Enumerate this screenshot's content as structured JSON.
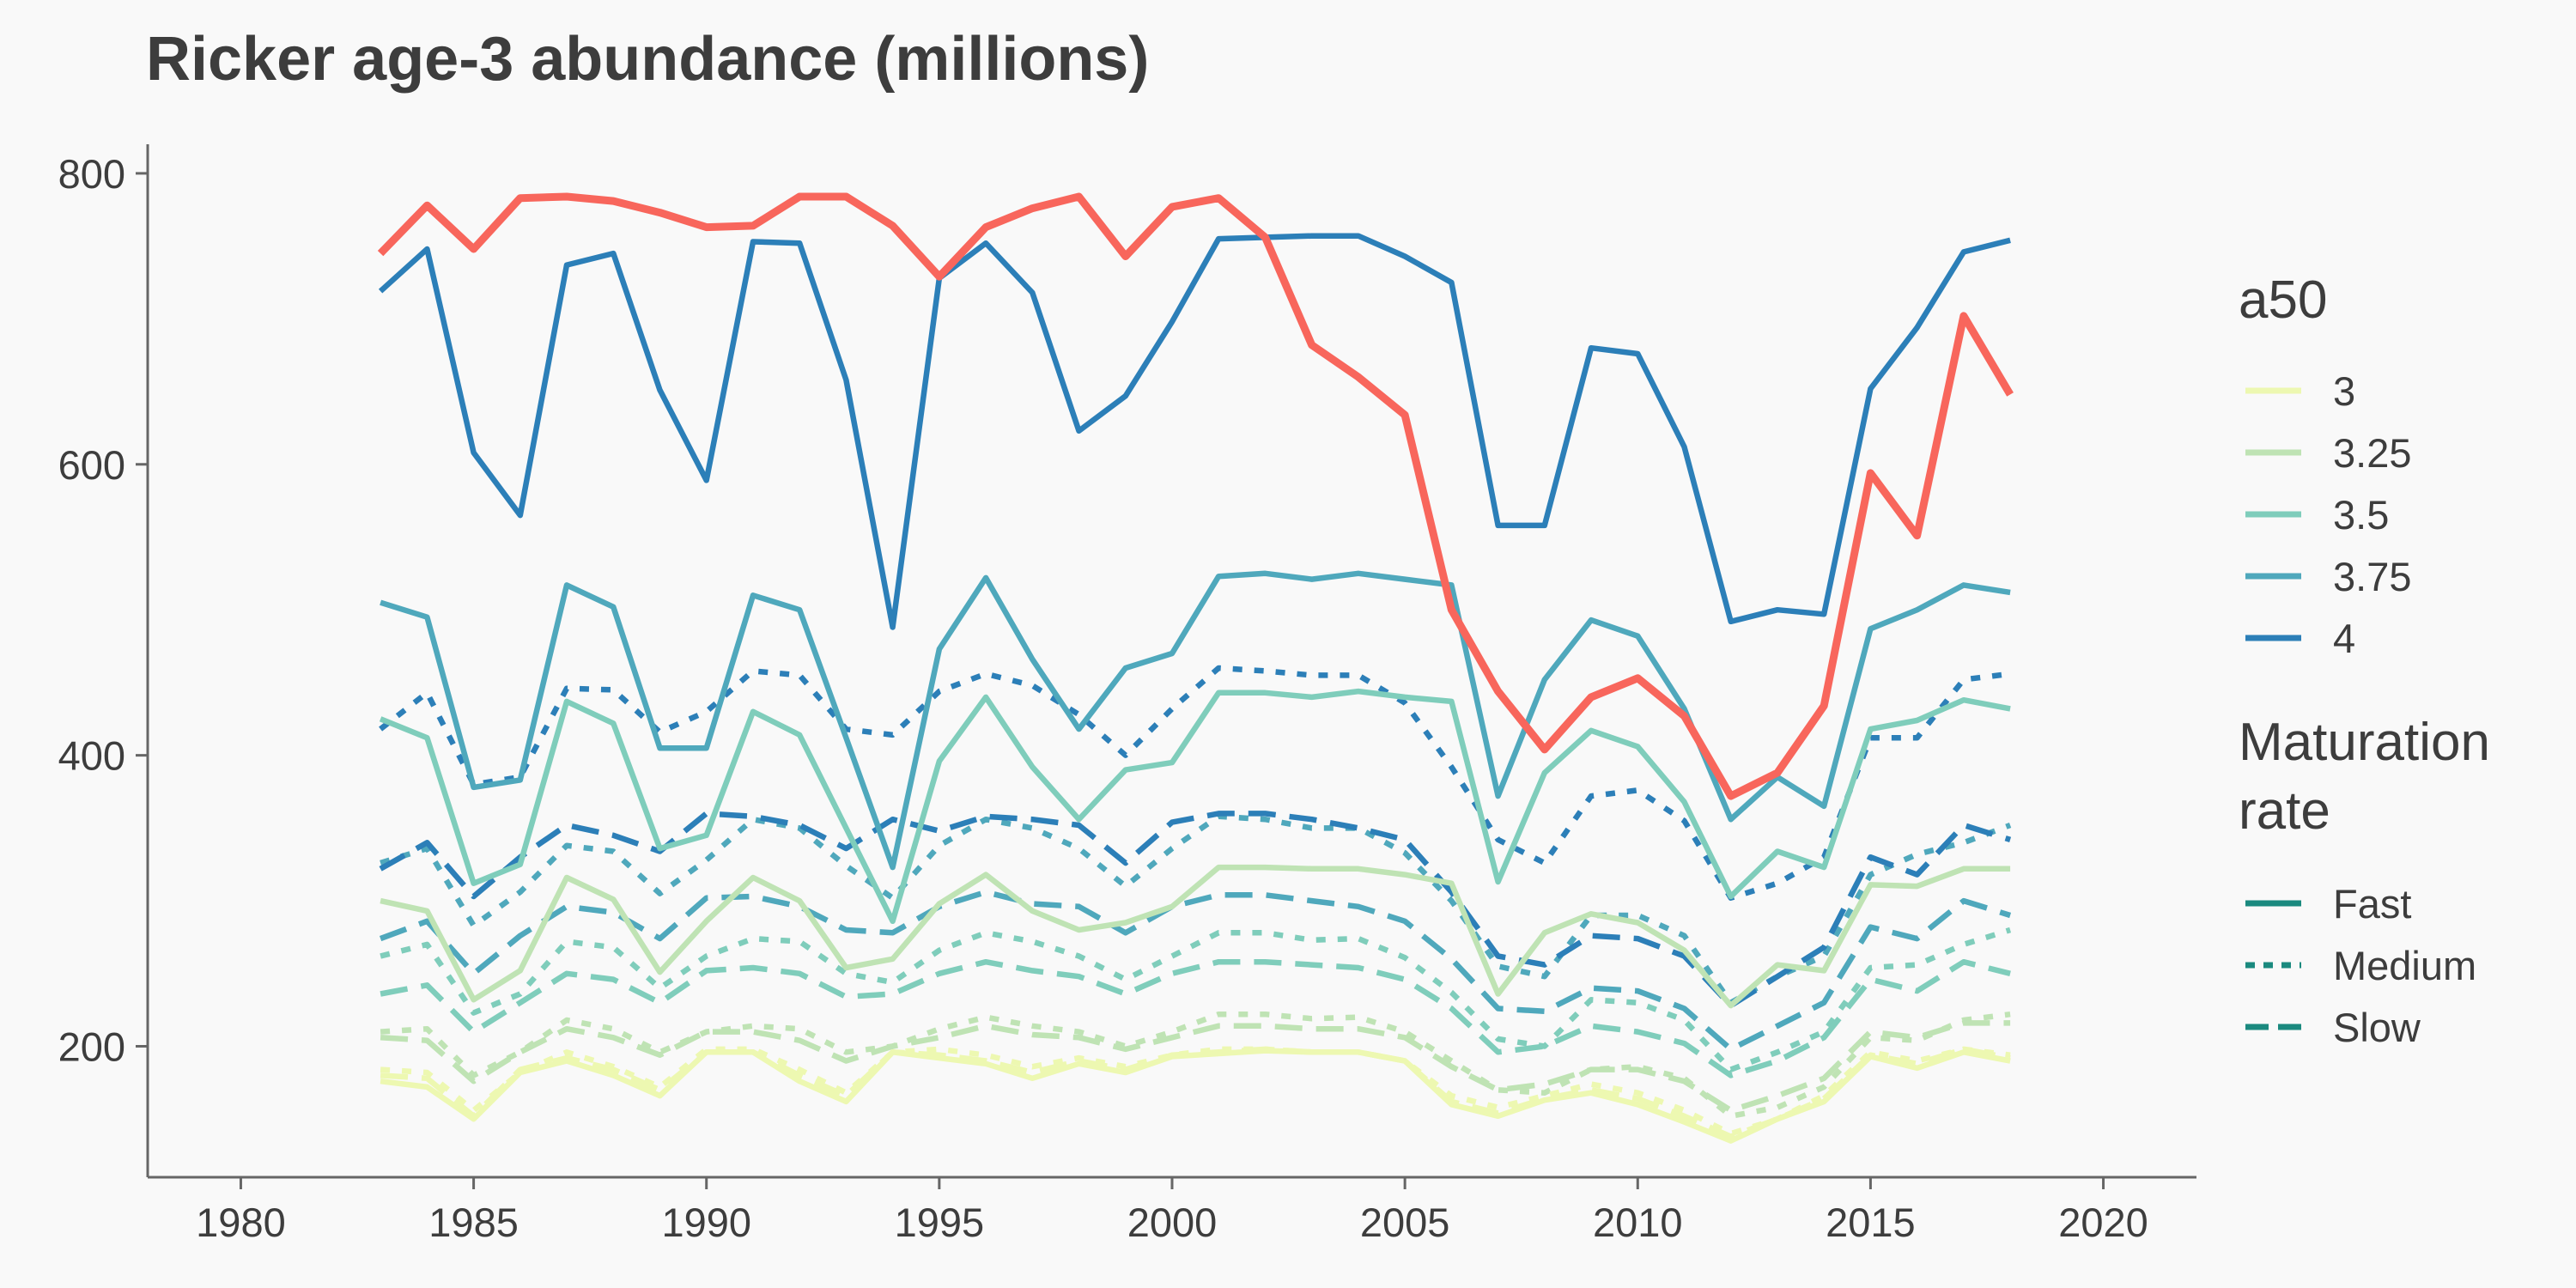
{
  "chart_data": {
    "type": "line",
    "title": "Ricker age-3 abundance (millions)",
    "xlabel": "",
    "ylabel": "",
    "xlim": [
      1978,
      2022
    ],
    "ylim": [
      110,
      820
    ],
    "x_ticks": [
      1980,
      1985,
      1990,
      1995,
      2000,
      2005,
      2010,
      2015,
      2020
    ],
    "y_ticks": [
      200,
      400,
      600,
      800
    ],
    "grid": false,
    "legend_position": "right",
    "x": [
      1983,
      1984,
      1985,
      1986,
      1987,
      1988,
      1989,
      1990,
      1991,
      1992,
      1993,
      1994,
      1995,
      1996,
      1997,
      1998,
      1999,
      2000,
      2001,
      2002,
      2003,
      2004,
      2005,
      2006,
      2007,
      2008,
      2009,
      2010,
      2011,
      2012,
      2013,
      2014,
      2015,
      2016,
      2017,
      2018
    ],
    "legend": {
      "a50_title": "a50",
      "a50_entries": [
        {
          "label": "3",
          "color": "#edf8b1"
        },
        {
          "label": "3.25",
          "color": "#bfe3b4"
        },
        {
          "label": "3.5",
          "color": "#7fcdbb"
        },
        {
          "label": "3.75",
          "color": "#4fa8bc"
        },
        {
          "label": "4",
          "color": "#2c7fb8"
        }
      ],
      "maturation_title_lines": [
        "Maturation",
        "rate"
      ],
      "maturation_entries": [
        {
          "label": "Fast",
          "dash": "solid"
        },
        {
          "label": "Medium",
          "dash": "dotted"
        },
        {
          "label": "Slow",
          "dash": "dashed"
        }
      ],
      "swatch_color": "#1b8a7f"
    },
    "series": [
      {
        "a50": "4",
        "rate": "Fast",
        "color": "#2c7fb8",
        "dash": "solid",
        "values": [
          719,
          748,
          608,
          565,
          737,
          745,
          651,
          589,
          753,
          752,
          658,
          488,
          728,
          752,
          718,
          623,
          647,
          698,
          755,
          756,
          757,
          757,
          743,
          725,
          558,
          558,
          680,
          676,
          612,
          492,
          500,
          497,
          652,
          694,
          746,
          754
        ]
      },
      {
        "a50": "3.75",
        "rate": "Fast",
        "color": "#4fa8bc",
        "dash": "solid",
        "values": [
          505,
          495,
          378,
          383,
          517,
          502,
          405,
          405,
          510,
          500,
          412,
          323,
          473,
          522,
          466,
          418,
          460,
          470,
          523,
          525,
          521,
          525,
          521,
          517,
          372,
          452,
          493,
          482,
          432,
          356,
          385,
          365,
          487,
          500,
          517,
          512
        ]
      },
      {
        "a50": "3.5",
        "rate": "Fast",
        "color": "#7fcdbb",
        "dash": "solid",
        "values": [
          425,
          412,
          312,
          325,
          437,
          422,
          336,
          345,
          430,
          414,
          350,
          286,
          396,
          440,
          392,
          356,
          390,
          395,
          443,
          443,
          440,
          444,
          440,
          437,
          313,
          388,
          417,
          406,
          368,
          303,
          334,
          323,
          418,
          424,
          438,
          432
        ]
      },
      {
        "a50": "3.25",
        "rate": "Fast",
        "color": "#bfe3b4",
        "dash": "solid",
        "values": [
          300,
          293,
          232,
          252,
          316,
          301,
          251,
          286,
          316,
          300,
          254,
          260,
          298,
          318,
          293,
          280,
          285,
          296,
          323,
          323,
          322,
          322,
          318,
          312,
          236,
          278,
          291,
          285,
          266,
          228,
          256,
          252,
          311,
          310,
          322,
          322
        ]
      },
      {
        "a50": "3",
        "rate": "Fast",
        "color": "#edf8b1",
        "dash": "solid",
        "values": [
          176,
          172,
          150,
          182,
          190,
          180,
          166,
          196,
          196,
          176,
          162,
          196,
          192,
          188,
          178,
          188,
          182,
          193,
          195,
          197,
          196,
          196,
          190,
          160,
          152,
          163,
          168,
          160,
          148,
          135,
          150,
          162,
          193,
          185,
          196,
          190
        ]
      },
      {
        "a50": "4",
        "rate": "Medium",
        "color": "#2c7fb8",
        "dash": "dotted",
        "values": [
          418,
          443,
          380,
          385,
          446,
          445,
          416,
          430,
          458,
          455,
          418,
          414,
          444,
          456,
          448,
          428,
          400,
          432,
          460,
          458,
          455,
          455,
          436,
          392,
          342,
          326,
          372,
          376,
          355,
          302,
          312,
          330,
          412,
          412,
          452,
          456
        ]
      },
      {
        "a50": "3.75",
        "rate": "Medium",
        "color": "#4fa8bc",
        "dash": "dotted",
        "values": [
          326,
          336,
          283,
          306,
          338,
          334,
          305,
          328,
          356,
          350,
          324,
          302,
          338,
          356,
          350,
          336,
          310,
          336,
          358,
          356,
          350,
          350,
          333,
          300,
          255,
          248,
          290,
          290,
          276,
          230,
          248,
          262,
          318,
          332,
          340,
          352
        ]
      },
      {
        "a50": "3.5",
        "rate": "Medium",
        "color": "#7fcdbb",
        "dash": "dotted",
        "values": [
          262,
          270,
          223,
          236,
          272,
          268,
          240,
          262,
          274,
          272,
          250,
          244,
          266,
          278,
          272,
          262,
          246,
          262,
          278,
          278,
          273,
          274,
          261,
          237,
          205,
          200,
          232,
          230,
          218,
          184,
          196,
          210,
          254,
          256,
          270,
          280
        ]
      },
      {
        "a50": "3.25",
        "rate": "Medium",
        "color": "#bfe3b4",
        "dash": "dotted",
        "values": [
          210,
          212,
          180,
          196,
          218,
          212,
          196,
          210,
          214,
          212,
          196,
          200,
          212,
          220,
          214,
          210,
          200,
          210,
          222,
          222,
          219,
          220,
          210,
          190,
          170,
          168,
          184,
          186,
          178,
          152,
          158,
          172,
          206,
          204,
          218,
          222
        ]
      },
      {
        "a50": "3",
        "rate": "Medium",
        "color": "#edf8b1",
        "dash": "dotted",
        "values": [
          184,
          182,
          156,
          182,
          196,
          186,
          172,
          198,
          198,
          184,
          168,
          196,
          198,
          194,
          186,
          192,
          186,
          194,
          198,
          198,
          196,
          196,
          190,
          166,
          158,
          166,
          174,
          168,
          156,
          140,
          150,
          166,
          196,
          190,
          198,
          194
        ]
      },
      {
        "a50": "4",
        "rate": "Slow",
        "color": "#2c7fb8",
        "dash": "dashed",
        "values": [
          322,
          340,
          303,
          330,
          352,
          345,
          334,
          360,
          358,
          352,
          336,
          356,
          348,
          358,
          356,
          352,
          326,
          354,
          360,
          360,
          356,
          350,
          342,
          306,
          262,
          256,
          276,
          274,
          262,
          228,
          248,
          268,
          330,
          318,
          352,
          342
        ]
      },
      {
        "a50": "3.75",
        "rate": "Slow",
        "color": "#4fa8bc",
        "dash": "dashed",
        "values": [
          274,
          286,
          250,
          276,
          296,
          292,
          274,
          302,
          303,
          296,
          280,
          278,
          296,
          306,
          298,
          296,
          278,
          296,
          304,
          304,
          300,
          296,
          286,
          260,
          226,
          224,
          240,
          238,
          226,
          198,
          214,
          230,
          282,
          274,
          300,
          290
        ]
      },
      {
        "a50": "3.5",
        "rate": "Slow",
        "color": "#7fcdbb",
        "dash": "dashed",
        "values": [
          236,
          242,
          210,
          230,
          250,
          246,
          230,
          252,
          254,
          250,
          234,
          236,
          250,
          258,
          252,
          248,
          236,
          250,
          258,
          258,
          256,
          254,
          246,
          226,
          196,
          200,
          214,
          210,
          202,
          180,
          190,
          206,
          246,
          238,
          258,
          250
        ]
      },
      {
        "a50": "3.25",
        "rate": "Slow",
        "color": "#bfe3b4",
        "dash": "dashed",
        "values": [
          206,
          204,
          176,
          196,
          212,
          206,
          194,
          210,
          210,
          204,
          190,
          200,
          206,
          214,
          208,
          206,
          198,
          206,
          214,
          214,
          212,
          212,
          206,
          186,
          170,
          174,
          184,
          184,
          176,
          156,
          166,
          178,
          210,
          206,
          216,
          216
        ]
      },
      {
        "a50": "3",
        "rate": "Slow",
        "color": "#edf8b1",
        "dash": "dashed",
        "values": [
          180,
          178,
          152,
          184,
          192,
          184,
          170,
          196,
          196,
          180,
          166,
          196,
          194,
          190,
          182,
          190,
          184,
          194,
          196,
          198,
          196,
          196,
          190,
          162,
          154,
          164,
          170,
          164,
          152,
          138,
          150,
          164,
          194,
          188,
          198,
          192
        ]
      },
      {
        "a50": "",
        "rate": "",
        "color": "#f8665c",
        "dash": "solid",
        "highlight": true,
        "values": [
          745,
          778,
          748,
          783,
          784,
          781,
          773,
          763,
          764,
          784,
          784,
          764,
          729,
          763,
          776,
          784,
          743,
          777,
          783,
          756,
          682,
          660,
          634,
          500,
          444,
          404,
          440,
          453,
          427,
          372,
          388,
          434,
          594,
          551,
          702,
          648
        ]
      }
    ]
  }
}
